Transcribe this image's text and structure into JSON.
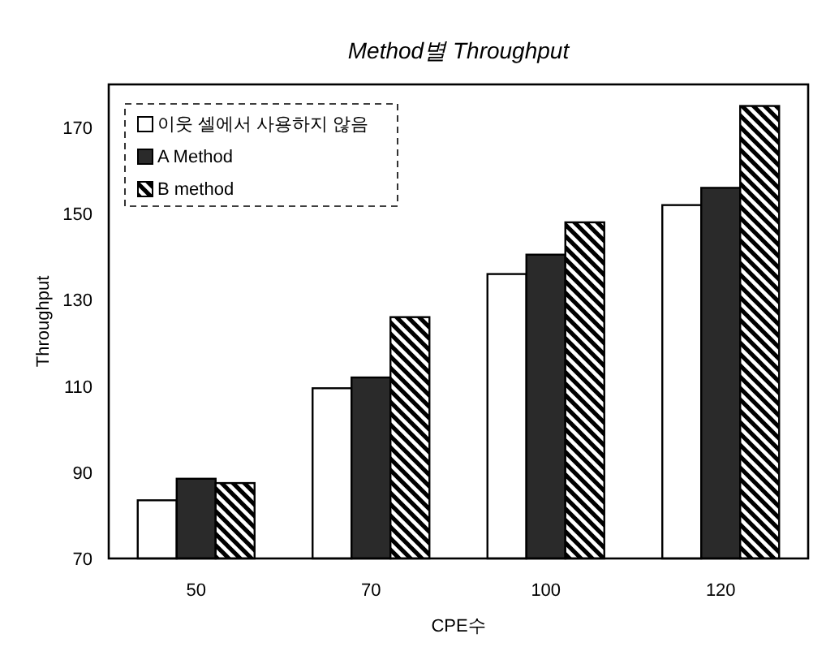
{
  "chart_data": {
    "type": "bar",
    "title": "Method별 Throughput",
    "xlabel": "CPE수",
    "ylabel": "Throughput",
    "categories": [
      "50",
      "70",
      "100",
      "120"
    ],
    "series": [
      {
        "name": "이웃 셀에서 사용하지 않음",
        "color": "#ffffff",
        "values": [
          83.5,
          109.5,
          136,
          152
        ]
      },
      {
        "name": "A Method",
        "color": "#2a2a2a",
        "values": [
          88.5,
          112,
          140.5,
          156
        ]
      },
      {
        "name": "B method",
        "color": "#000000",
        "values": [
          87.5,
          126,
          148,
          175
        ]
      }
    ],
    "ylim": [
      70,
      180
    ],
    "yticks": [
      70,
      90,
      110,
      130,
      150,
      170
    ],
    "legend": "top left"
  }
}
